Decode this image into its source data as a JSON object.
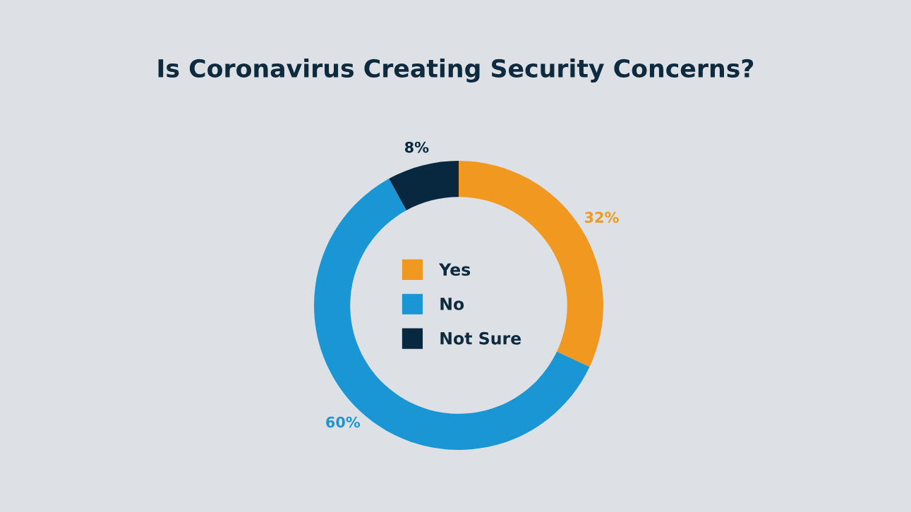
{
  "chart_data": {
    "type": "donut",
    "title": "Is Coronavirus Creating Security Concerns?",
    "categories": [
      "Yes",
      "No",
      "Not Sure"
    ],
    "values": [
      32,
      60,
      8
    ],
    "value_labels": [
      "32%",
      "60%",
      "8%"
    ],
    "colors": [
      "#f0981f",
      "#1b96d4",
      "#082840"
    ],
    "legend": "center"
  }
}
